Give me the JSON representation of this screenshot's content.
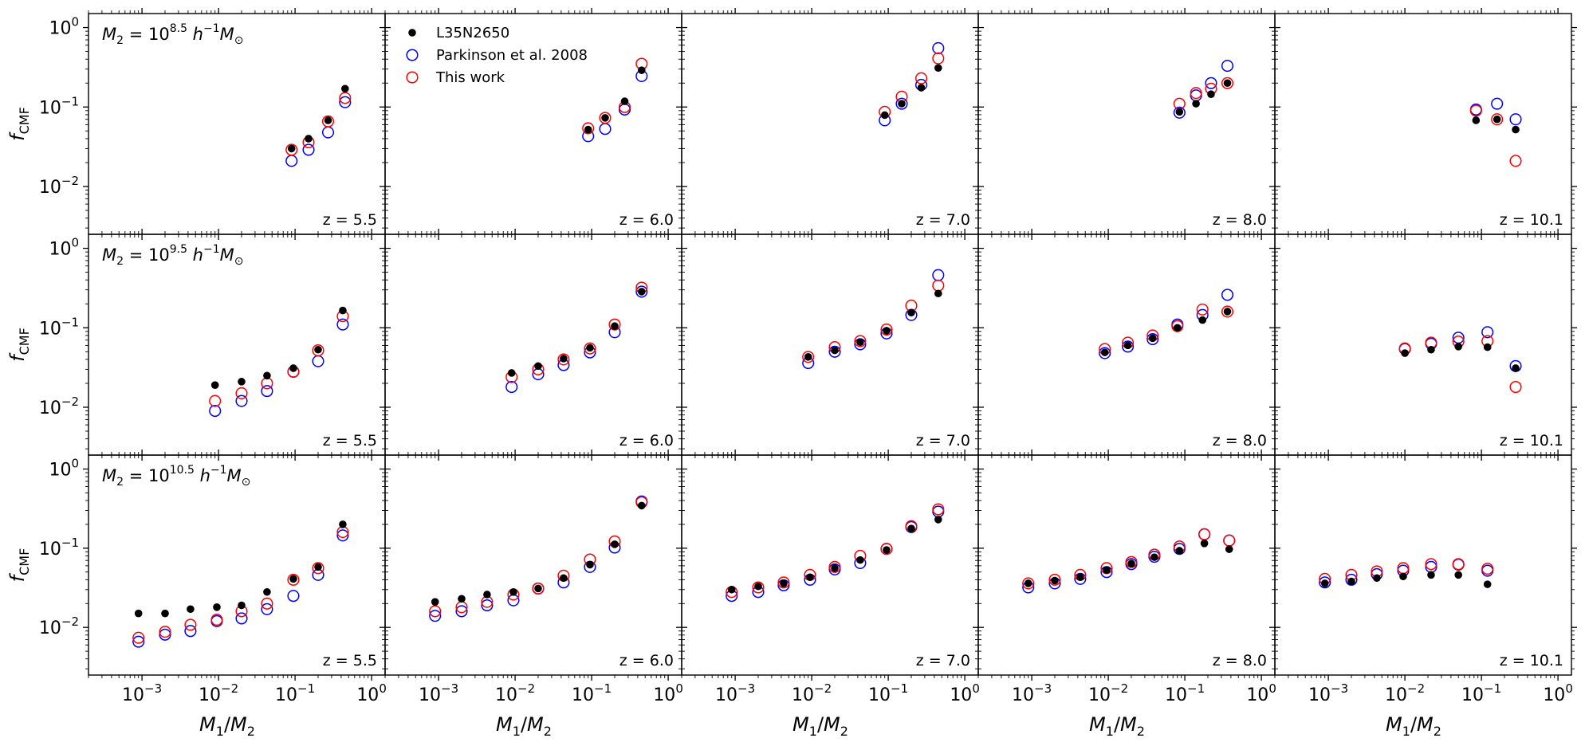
{
  "figure": {
    "rows": [
      {
        "mass_label_main": "M",
        "mass_label_sub": "2",
        "mass_label_eq": " = 10",
        "mass_label_exp": "8.5",
        "mass_label_unit": " h",
        "mass_label_unit_exp": "−1",
        "mass_label_msun": "M",
        "mass_label_sun": "⊙"
      },
      {
        "mass_label_main": "M",
        "mass_label_sub": "2",
        "mass_label_eq": " = 10",
        "mass_label_exp": "9.5",
        "mass_label_unit": " h",
        "mass_label_unit_exp": "−1",
        "mass_label_msun": "M",
        "mass_label_sun": "⊙"
      },
      {
        "mass_label_main": "M",
        "mass_label_sub": "2",
        "mass_label_eq": " = 10",
        "mass_label_exp": "10.5",
        "mass_label_unit": " h",
        "mass_label_unit_exp": "−1",
        "mass_label_msun": "M",
        "mass_label_sun": "⊙"
      }
    ],
    "columns": [
      {
        "z_label": "z = 5.5"
      },
      {
        "z_label": "z = 6.0"
      },
      {
        "z_label": "z = 7.0"
      },
      {
        "z_label": "z = 8.0"
      },
      {
        "z_label": "z = 10.1"
      }
    ],
    "ylabel_main": "f",
    "ylabel_sub": "CMF",
    "xlabel_m1": "M",
    "xlabel_m1_sub": "1",
    "xlabel_slash": "/",
    "xlabel_m2": "M",
    "xlabel_m2_sub": "2",
    "x_tick_labels": [
      {
        "base": "10",
        "exp": "−3"
      },
      {
        "base": "10",
        "exp": "−2"
      },
      {
        "base": "10",
        "exp": "−1"
      },
      {
        "base": "10",
        "exp": "0"
      }
    ],
    "y_tick_labels": [
      {
        "base": "10",
        "exp": "−2"
      },
      {
        "base": "10",
        "exp": "−1"
      },
      {
        "base": "10",
        "exp": "0"
      }
    ],
    "legend": [
      {
        "label": "L35N2650",
        "marker": "filled-circle",
        "color": "#000000"
      },
      {
        "label": "Parkinson et al. 2008",
        "marker": "open-circle",
        "color": "#0000ff"
      },
      {
        "label": "This work",
        "marker": "open-circle",
        "color": "#ff0000"
      }
    ]
  },
  "chart_data": {
    "type": "scatter",
    "layout": "3x5 grid of panels, rows = M2, columns = redshift",
    "xscale": "log",
    "yscale": "log",
    "xlim": [
      0.0002,
      1.5
    ],
    "ylim": [
      0.0025,
      1.5
    ],
    "legend_placement": "upper-left of row 1, column 2",
    "series_names": [
      "L35N2650",
      "Parkinson et al. 2008",
      "This work"
    ],
    "series_colors": [
      "#000000",
      "#0000ff",
      "#ff0000"
    ],
    "panels": [
      {
        "row": 0,
        "col": 0,
        "x": [
          0.09,
          0.15,
          0.27,
          0.45
        ],
        "L35N2650": [
          0.03,
          0.04,
          0.068,
          0.17
        ],
        "Parkinson": [
          0.021,
          0.029,
          0.048,
          0.115
        ],
        "ThisWork": [
          0.029,
          0.036,
          0.066,
          0.13
        ]
      },
      {
        "row": 0,
        "col": 1,
        "x": [
          0.09,
          0.15,
          0.27,
          0.45
        ],
        "L35N2650": [
          0.052,
          0.073,
          0.118,
          0.29
        ],
        "Parkinson": [
          0.043,
          0.053,
          0.093,
          0.245
        ],
        "ThisWork": [
          0.054,
          0.073,
          0.1,
          0.35
        ]
      },
      {
        "row": 0,
        "col": 2,
        "x": [
          0.09,
          0.15,
          0.27,
          0.45
        ],
        "L35N2650": [
          0.079,
          0.11,
          0.175,
          0.31
        ],
        "Parkinson": [
          0.068,
          0.11,
          0.19,
          0.55
        ],
        "ThisWork": [
          0.087,
          0.135,
          0.23,
          0.41
        ]
      },
      {
        "row": 0,
        "col": 3,
        "x": [
          0.085,
          0.14,
          0.22,
          0.36
        ],
        "L35N2650": [
          0.087,
          0.11,
          0.145,
          0.2
        ],
        "Parkinson": [
          0.085,
          0.14,
          0.2,
          0.33
        ],
        "ThisWork": [
          0.11,
          0.15,
          0.17,
          0.2
        ]
      },
      {
        "row": 0,
        "col": 4,
        "x": [
          0.085,
          0.16,
          0.28
        ],
        "L35N2650": [
          0.068,
          0.07,
          0.052
        ],
        "Parkinson": [
          0.093,
          0.11,
          0.07
        ],
        "ThisWork": [
          0.09,
          0.07,
          0.021
        ]
      },
      {
        "row": 1,
        "col": 0,
        "x": [
          0.009,
          0.02,
          0.043,
          0.095,
          0.2,
          0.42
        ],
        "L35N2650": [
          0.019,
          0.021,
          0.025,
          0.031,
          0.053,
          0.165
        ],
        "Parkinson": [
          0.009,
          0.012,
          0.016,
          0.028,
          0.038,
          0.11
        ],
        "ThisWork": [
          0.012,
          0.015,
          0.02,
          0.028,
          0.052,
          0.14
        ]
      },
      {
        "row": 1,
        "col": 1,
        "x": [
          0.009,
          0.02,
          0.043,
          0.095,
          0.2,
          0.45
        ],
        "L35N2650": [
          0.027,
          0.033,
          0.041,
          0.056,
          0.105,
          0.285
        ],
        "Parkinson": [
          0.018,
          0.026,
          0.034,
          0.049,
          0.088,
          0.285
        ],
        "ThisWork": [
          0.024,
          0.03,
          0.04,
          0.055,
          0.11,
          0.32
        ]
      },
      {
        "row": 1,
        "col": 2,
        "x": [
          0.009,
          0.02,
          0.043,
          0.095,
          0.2,
          0.45
        ],
        "L35N2650": [
          0.043,
          0.052,
          0.066,
          0.092,
          0.155,
          0.27
        ],
        "Parkinson": [
          0.036,
          0.05,
          0.062,
          0.085,
          0.145,
          0.46
        ],
        "ThisWork": [
          0.043,
          0.057,
          0.068,
          0.095,
          0.19,
          0.34
        ]
      },
      {
        "row": 1,
        "col": 3,
        "x": [
          0.009,
          0.018,
          0.038,
          0.08,
          0.17,
          0.36
        ],
        "L35N2650": [
          0.049,
          0.06,
          0.074,
          0.1,
          0.125,
          0.16
        ],
        "Parkinson": [
          0.048,
          0.058,
          0.072,
          0.11,
          0.145,
          0.26
        ],
        "ThisWork": [
          0.054,
          0.065,
          0.08,
          0.105,
          0.17,
          0.16
        ]
      },
      {
        "row": 1,
        "col": 4,
        "x": [
          0.01,
          0.022,
          0.05,
          0.12,
          0.28
        ],
        "L35N2650": [
          0.048,
          0.053,
          0.058,
          0.057,
          0.031
        ],
        "Parkinson": [
          0.054,
          0.063,
          0.075,
          0.088,
          0.033
        ],
        "ThisWork": [
          0.055,
          0.065,
          0.067,
          0.068,
          0.018
        ]
      },
      {
        "row": 2,
        "col": 0,
        "x": [
          0.0009,
          0.002,
          0.0043,
          0.0095,
          0.02,
          0.043,
          0.095,
          0.2,
          0.42
        ],
        "L35N2650": [
          0.015,
          0.015,
          0.017,
          0.018,
          0.019,
          0.028,
          0.041,
          0.058,
          0.2
        ],
        "Parkinson": [
          0.0066,
          0.0081,
          0.009,
          0.012,
          0.013,
          0.017,
          0.025,
          0.046,
          0.145
        ],
        "ThisWork": [
          0.0074,
          0.0088,
          0.0108,
          0.0125,
          0.016,
          0.02,
          0.04,
          0.056,
          0.16
        ]
      },
      {
        "row": 2,
        "col": 1,
        "x": [
          0.0009,
          0.002,
          0.0043,
          0.0095,
          0.02,
          0.043,
          0.095,
          0.2,
          0.45
        ],
        "L35N2650": [
          0.021,
          0.023,
          0.026,
          0.028,
          0.031,
          0.042,
          0.062,
          0.112,
          0.345
        ],
        "Parkinson": [
          0.014,
          0.016,
          0.019,
          0.022,
          0.031,
          0.037,
          0.058,
          0.102,
          0.39
        ],
        "ThisWork": [
          0.016,
          0.018,
          0.021,
          0.026,
          0.031,
          0.045,
          0.072,
          0.122,
          0.38
        ]
      },
      {
        "row": 2,
        "col": 2,
        "x": [
          0.0009,
          0.002,
          0.0043,
          0.0095,
          0.02,
          0.043,
          0.095,
          0.2,
          0.45
        ],
        "L35N2650": [
          0.03,
          0.033,
          0.036,
          0.043,
          0.056,
          0.071,
          0.095,
          0.177,
          0.23
        ],
        "Parkinson": [
          0.025,
          0.028,
          0.034,
          0.04,
          0.054,
          0.065,
          0.098,
          0.185,
          0.29
        ],
        "ThisWork": [
          0.028,
          0.032,
          0.037,
          0.046,
          0.058,
          0.08,
          0.098,
          0.19,
          0.31
        ]
      },
      {
        "row": 2,
        "col": 3,
        "x": [
          0.0009,
          0.002,
          0.0043,
          0.0095,
          0.02,
          0.04,
          0.085,
          0.18,
          0.38
        ],
        "L35N2650": [
          0.036,
          0.039,
          0.043,
          0.053,
          0.064,
          0.077,
          0.093,
          0.115,
          0.097
        ],
        "Parkinson": [
          0.032,
          0.036,
          0.041,
          0.05,
          0.063,
          0.078,
          0.098,
          0.15,
          0.125
        ],
        "ThisWork": [
          0.036,
          0.04,
          0.046,
          0.056,
          0.067,
          0.083,
          0.105,
          0.15,
          0.125
        ]
      },
      {
        "row": 2,
        "col": 4,
        "x": [
          0.0009,
          0.002,
          0.0043,
          0.0095,
          0.022,
          0.05,
          0.12
        ],
        "L35N2650": [
          0.036,
          0.038,
          0.042,
          0.044,
          0.046,
          0.046,
          0.035
        ],
        "Parkinson": [
          0.037,
          0.04,
          0.047,
          0.052,
          0.058,
          0.062,
          0.052
        ],
        "ThisWork": [
          0.041,
          0.046,
          0.051,
          0.056,
          0.063,
          0.063,
          0.055
        ]
      }
    ]
  }
}
